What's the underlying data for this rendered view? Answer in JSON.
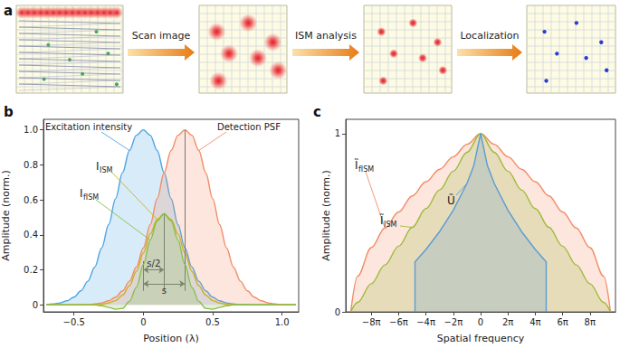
{
  "panel_a": {
    "title": "a",
    "steps": [
      "Scan image",
      "ISM analysis",
      "Localization"
    ]
  },
  "chart_data": [
    {
      "title": "b",
      "type": "line",
      "xlabel": "Position (λ)",
      "ylabel": "Amplitude (norm.)",
      "xlim": [
        -0.72,
        1.12
      ],
      "ylim": [
        -0.04,
        1.06
      ],
      "xticks": [
        {
          "value": -0.5,
          "label": "−0.5"
        },
        0,
        0.5,
        {
          "value": 1,
          "label": "1.0"
        }
      ],
      "yticks": [
        0,
        0.2,
        0.4,
        0.6,
        0.8,
        {
          "value": 1,
          "label": "1.0"
        }
      ],
      "grid": false,
      "x": [
        -0.7,
        -0.65,
        -0.6,
        -0.55,
        -0.5,
        -0.45,
        -0.4,
        -0.35,
        -0.3,
        -0.25,
        -0.2,
        -0.15,
        -0.1,
        -0.05,
        0,
        0.05,
        0.1,
        0.15,
        0.2,
        0.25,
        0.3,
        0.35,
        0.4,
        0.45,
        0.5,
        0.55,
        0.6,
        0.65,
        0.7,
        0.75,
        0.8,
        0.85,
        0.9,
        0.95,
        1,
        1.05,
        1.1
      ],
      "series": [
        {
          "name": "Excitation intensity",
          "type": "area",
          "color": "#4ea5e3",
          "values": [
            0.002,
            0.005,
            0.011,
            0.023,
            0.044,
            0.08,
            0.135,
            0.216,
            0.325,
            0.458,
            0.607,
            0.755,
            0.882,
            0.969,
            1.0,
            0.969,
            0.882,
            0.755,
            0.607,
            0.458,
            0.325,
            0.216,
            0.135,
            0.08,
            0.044,
            0.023,
            0.011,
            0.005,
            0.002,
            0.001,
            0,
            0,
            0,
            0,
            0,
            0,
            0
          ]
        },
        {
          "name": "Detection PSF",
          "type": "area",
          "color": "#f28c66",
          "values": [
            0,
            0,
            0,
            0,
            0,
            0.001,
            0.002,
            0.005,
            0.011,
            0.023,
            0.044,
            0.08,
            0.135,
            0.216,
            0.325,
            0.458,
            0.607,
            0.755,
            0.882,
            0.969,
            1.0,
            0.969,
            0.882,
            0.755,
            0.607,
            0.458,
            0.325,
            0.216,
            0.135,
            0.08,
            0.044,
            0.023,
            0.011,
            0.005,
            0.002,
            0.001,
            0
          ]
        },
        {
          "name": "I",
          "subscript": "ISM",
          "type": "line",
          "color": "#c9b21e",
          "values": [
            0,
            0,
            0,
            0,
            0,
            0,
            0,
            0.001,
            0.003,
            0.01,
            0.024,
            0.055,
            0.109,
            0.191,
            0.296,
            0.405,
            0.488,
            0.52,
            0.488,
            0.405,
            0.296,
            0.191,
            0.109,
            0.055,
            0.024,
            0.01,
            0.003,
            0.001,
            0,
            0,
            0,
            0,
            0,
            0,
            0,
            0,
            0
          ]
        },
        {
          "name": "I",
          "subscript": "fISM",
          "type": "area",
          "color": "#86c04a",
          "values": [
            0,
            0,
            0,
            0,
            0,
            0,
            0,
            0,
            -0.005,
            -0.015,
            -0.025,
            -0.02,
            0.02,
            0.1,
            0.23,
            0.37,
            0.48,
            0.52,
            0.48,
            0.37,
            0.23,
            0.1,
            0.02,
            -0.02,
            -0.025,
            -0.015,
            -0.005,
            0,
            0,
            0,
            0,
            0,
            0,
            0,
            0,
            0,
            0
          ]
        }
      ],
      "guides": [
        {
          "x": 0,
          "y": [
            0.08,
            0.25
          ]
        },
        {
          "x": 0.15,
          "y": [
            0.08,
            0.52
          ]
        },
        {
          "x": 0.3,
          "y": [
            0.08,
            1
          ]
        }
      ],
      "spans": [
        {
          "label": "s/2",
          "from": 0,
          "to": 0.15,
          "y": 0.2
        },
        {
          "label": "s",
          "from": 0,
          "to": 0.3,
          "y": 0.12
        }
      ]
    },
    {
      "title": "c",
      "type": "line",
      "xlabel": "Spatial frequency",
      "ylabel": "Amplitude (norm.)",
      "xlim": [
        -31,
        31
      ],
      "ylim": [
        0,
        1.08
      ],
      "xticks": [
        {
          "value": -25.133,
          "label": "−8π"
        },
        {
          "value": -18.85,
          "label": "−6π"
        },
        {
          "value": -12.566,
          "label": "−4π"
        },
        {
          "value": -6.283,
          "label": "−2π"
        },
        0,
        {
          "value": 6.283,
          "label": "2π"
        },
        {
          "value": 12.566,
          "label": "4π"
        },
        {
          "value": 18.85,
          "label": "6π"
        },
        {
          "value": 25.133,
          "label": "8π"
        }
      ],
      "yticks": [
        0,
        1
      ],
      "grid": false,
      "x": [
        -29.845,
        -28.274,
        -25.133,
        -21.991,
        -18.85,
        -15.708,
        -12.566,
        -9.425,
        -6.283,
        -3.142,
        0,
        3.142,
        6.283,
        9.425,
        12.566,
        15.708,
        18.85,
        21.991,
        25.133,
        28.274,
        29.845
      ],
      "series": [
        {
          "name": "Ĩ",
          "subscript": "fISM",
          "type": "area",
          "color": "#f28c66",
          "values": [
            0,
            0.2,
            0.36,
            0.47,
            0.56,
            0.65,
            0.73,
            0.8,
            0.87,
            0.94,
            1,
            0.94,
            0.87,
            0.8,
            0.73,
            0.65,
            0.56,
            0.47,
            0.36,
            0.2,
            0
          ]
        },
        {
          "name": "Ĩ",
          "subscript": "ISM",
          "type": "area",
          "color": "#9bbb3a",
          "values": [
            0,
            0.053,
            0.158,
            0.263,
            0.368,
            0.474,
            0.579,
            0.684,
            0.789,
            0.895,
            1,
            0.895,
            0.789,
            0.684,
            0.579,
            0.474,
            0.368,
            0.263,
            0.158,
            0.053,
            0
          ]
        },
        {
          "name": "Ũ",
          "type": "area",
          "color": "#5b9bd5",
          "x": [
            -15.08,
            -15.08,
            -12.566,
            -9.425,
            -6.283,
            -3.142,
            -1.571,
            0,
            1.571,
            3.142,
            6.283,
            9.425,
            12.566,
            15.08,
            15.08
          ],
          "values": [
            0,
            0.28,
            0.35,
            0.45,
            0.57,
            0.72,
            0.82,
            1,
            0.82,
            0.72,
            0.57,
            0.45,
            0.35,
            0.28,
            0
          ]
        }
      ]
    }
  ]
}
